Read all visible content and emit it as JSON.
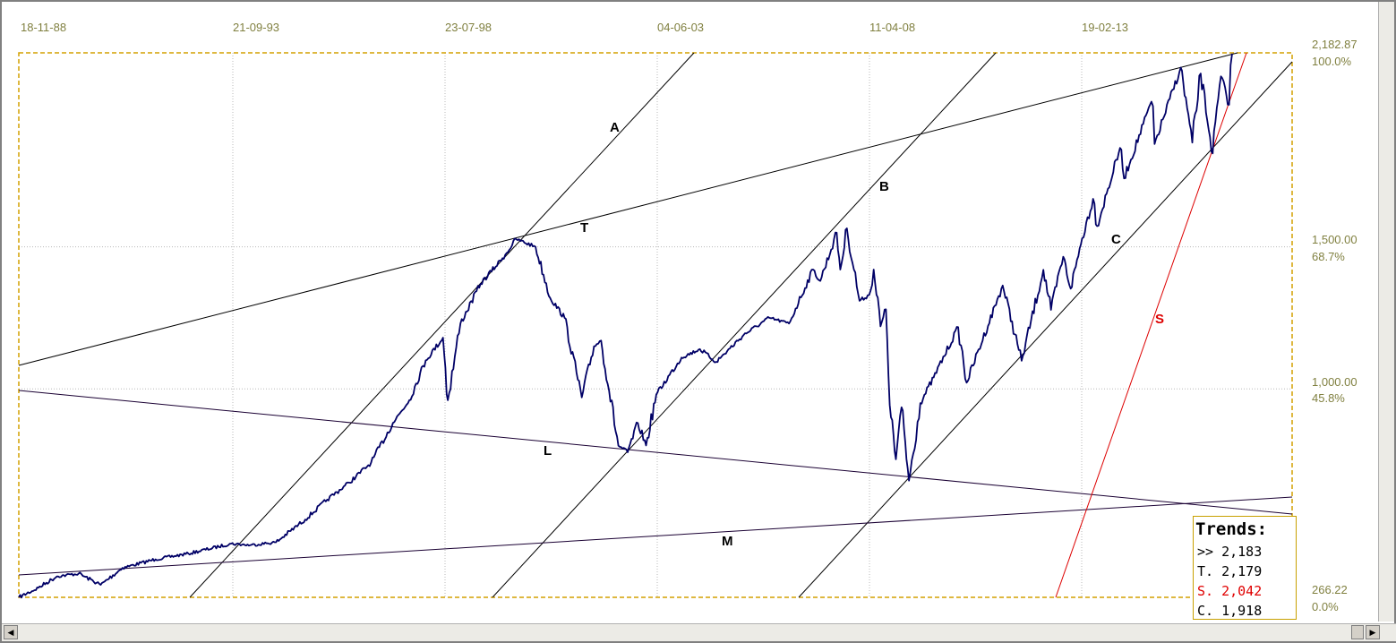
{
  "chart_data": {
    "type": "line",
    "title": "",
    "x_tick_labels": [
      "18-11-88",
      "21-09-93",
      "23-07-98",
      "04-06-03",
      "11-04-08",
      "19-02-13"
    ],
    "y_axis": {
      "min": 266.22,
      "max": 2182.87,
      "tick_labels": [
        {
          "price": "2,182.87",
          "percent": "100.0%"
        },
        {
          "price": "1,500.00",
          "percent": "68.7%"
        },
        {
          "price": "1,000.00",
          "percent": "45.8%"
        },
        {
          "price": "266.22",
          "percent": "0.0%"
        }
      ]
    },
    "grid": true,
    "series": [
      {
        "color": "#000066",
        "points": [
          [
            "1988-11-18",
            266
          ],
          [
            "1989-05-01",
            300
          ],
          [
            "1989-10-01",
            340
          ],
          [
            "1990-04-01",
            350
          ],
          [
            "1990-10-01",
            310
          ],
          [
            "1991-04-01",
            370
          ],
          [
            "1992-01-01",
            400
          ],
          [
            "1992-10-01",
            420
          ],
          [
            "1993-09-21",
            455
          ],
          [
            "1994-03-01",
            450
          ],
          [
            "1994-10-01",
            460
          ],
          [
            "1995-06-01",
            540
          ],
          [
            "1995-12-01",
            610
          ],
          [
            "1996-06-01",
            670
          ],
          [
            "1996-12-01",
            740
          ],
          [
            "1997-06-01",
            880
          ],
          [
            "1997-10-15",
            960
          ],
          [
            "1998-03-01",
            1100
          ],
          [
            "1998-07-23",
            1180
          ],
          [
            "1998-09-01",
            960
          ],
          [
            "1998-12-15",
            1230
          ],
          [
            "1999-06-01",
            1370
          ],
          [
            "1999-12-01",
            1460
          ],
          [
            "2000-03-24",
            1527
          ],
          [
            "2000-09-01",
            1500
          ],
          [
            "2001-01-01",
            1320
          ],
          [
            "2001-05-01",
            1250
          ],
          [
            "2001-09-21",
            970
          ],
          [
            "2002-01-01",
            1150
          ],
          [
            "2002-03-01",
            1170
          ],
          [
            "2002-07-23",
            800
          ],
          [
            "2002-10-09",
            777
          ],
          [
            "2003-01-01",
            880
          ],
          [
            "2003-03-11",
            801
          ],
          [
            "2003-06-04",
            980
          ],
          [
            "2003-12-31",
            1110
          ],
          [
            "2004-06-01",
            1140
          ],
          [
            "2004-10-15",
            1095
          ],
          [
            "2005-06-01",
            1190
          ],
          [
            "2005-12-31",
            1250
          ],
          [
            "2006-06-13",
            1230
          ],
          [
            "2006-12-31",
            1420
          ],
          [
            "2007-03-01",
            1380
          ],
          [
            "2007-07-16",
            1550
          ],
          [
            "2007-08-15",
            1420
          ],
          [
            "2007-10-09",
            1565
          ],
          [
            "2008-01-22",
            1310
          ],
          [
            "2008-04-11",
            1330
          ],
          [
            "2008-05-19",
            1420
          ],
          [
            "2008-07-15",
            1220
          ],
          [
            "2008-08-29",
            1280
          ],
          [
            "2008-10-10",
            900
          ],
          [
            "2008-11-20",
            752
          ],
          [
            "2009-01-06",
            935
          ],
          [
            "2009-03-09",
            677
          ],
          [
            "2009-06-12",
            950
          ],
          [
            "2009-10-01",
            1040
          ],
          [
            "2010-04-23",
            1217
          ],
          [
            "2010-07-02",
            1022
          ],
          [
            "2011-04-29",
            1364
          ],
          [
            "2011-10-03",
            1099
          ],
          [
            "2012-04-02",
            1419
          ],
          [
            "2012-06-04",
            1278
          ],
          [
            "2012-09-14",
            1465
          ],
          [
            "2012-11-15",
            1353
          ],
          [
            "2013-02-19",
            1530
          ],
          [
            "2013-05-21",
            1669
          ],
          [
            "2013-06-24",
            1573
          ],
          [
            "2013-12-31",
            1848
          ],
          [
            "2014-02-03",
            1741
          ],
          [
            "2014-09-19",
            2011
          ],
          [
            "2014-10-15",
            1862
          ],
          [
            "2015-05-21",
            2131
          ],
          [
            "2015-08-25",
            1867
          ],
          [
            "2015-11-03",
            2110
          ],
          [
            "2016-02-11",
            1829
          ],
          [
            "2016-04-20",
            2100
          ],
          [
            "2016-06-27",
            2000
          ],
          [
            "2016-07-22",
            2180
          ]
        ]
      }
    ],
    "trend_lines": [
      {
        "label": "A",
        "color": "#000000"
      },
      {
        "label": "B",
        "color": "#000000"
      },
      {
        "label": "C",
        "color": "#000000"
      },
      {
        "label": "T",
        "color": "#000000"
      },
      {
        "label": "L",
        "color": "#1a0033"
      },
      {
        "label": "M",
        "color": "#1a0033"
      },
      {
        "label": "S",
        "color": "#dd0000"
      }
    ],
    "legend": {
      "title": "Trends:",
      "placement": "bottom-right",
      "entries": [
        {
          "text": ">> 2,183",
          "color": "#000000"
        },
        {
          "text": "T. 2,179",
          "color": "#000000"
        },
        {
          "text": "S. 2,042",
          "color": "#e00000"
        },
        {
          "text": "C. 1,918",
          "color": "#000000"
        }
      ]
    }
  },
  "scrollbar": {
    "left_arrow": "◀",
    "right_arrow": "▶"
  }
}
